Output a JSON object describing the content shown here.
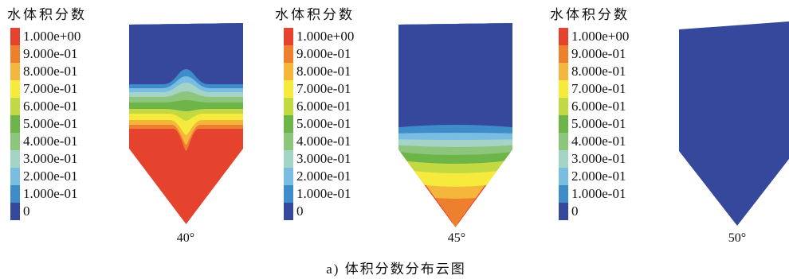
{
  "figure": {
    "caption": "a) 体积分数分布云图"
  },
  "chart_data": {
    "type": "heatmap",
    "colorbar": {
      "title": "水体积分数",
      "levels": [
        {
          "label": "1.000e+00",
          "value": 1.0,
          "color": "#e5432e"
        },
        {
          "label": "9.000e-01",
          "value": 0.9,
          "color": "#ee7f2f"
        },
        {
          "label": "8.000e-01",
          "value": 0.8,
          "color": "#f5b73b"
        },
        {
          "label": "7.000e-01",
          "value": 0.7,
          "color": "#f6ea3c"
        },
        {
          "label": "6.000e-01",
          "value": 0.6,
          "color": "#c2d942"
        },
        {
          "label": "5.000e-01",
          "value": 0.5,
          "color": "#6db548"
        },
        {
          "label": "4.000e-01",
          "value": 0.4,
          "color": "#8dc57c"
        },
        {
          "label": "3.000e-01",
          "value": 0.3,
          "color": "#a3d4c6"
        },
        {
          "label": "2.000e-01",
          "value": 0.2,
          "color": "#79bde2"
        },
        {
          "label": "1.000e-01",
          "value": 0.1,
          "color": "#3f8ccb"
        },
        {
          "label": "0",
          "value": 0,
          "color": "#36489b"
        }
      ]
    },
    "panels": [
      {
        "label": "40°"
      },
      {
        "label": "45°"
      },
      {
        "label": "50°"
      }
    ]
  }
}
